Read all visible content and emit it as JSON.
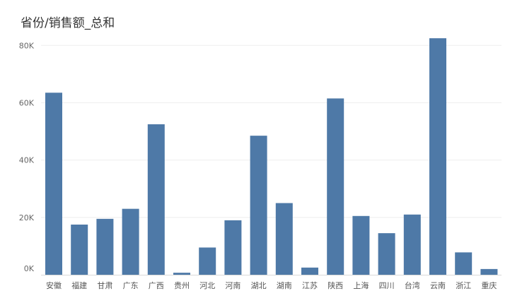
{
  "title": "省份/销售额_总和",
  "colors": {
    "bar": "#4e79a7",
    "grid": "#eeeeee",
    "axis": "#d9d9d9"
  },
  "chart_data": {
    "type": "bar",
    "title": "省份/销售额_总和",
    "xlabel": "",
    "ylabel": "",
    "categories": [
      "安徽",
      "福建",
      "甘肃",
      "广东",
      "广西",
      "贵州",
      "河北",
      "河南",
      "湖北",
      "湖南",
      "江苏",
      "陕西",
      "上海",
      "四川",
      "台湾",
      "云南",
      "浙江",
      "重庆"
    ],
    "values": [
      63500,
      17500,
      19500,
      23000,
      52500,
      700,
      9500,
      19000,
      48500,
      25000,
      2500,
      61500,
      20500,
      14500,
      21000,
      82500,
      7800,
      2000
    ],
    "ylim": [
      0,
      85000
    ],
    "yticks": [
      0,
      20000,
      40000,
      60000,
      80000
    ],
    "ytick_labels": [
      "0K",
      "20K",
      "40K",
      "60K",
      "80K"
    ],
    "grid": true
  }
}
